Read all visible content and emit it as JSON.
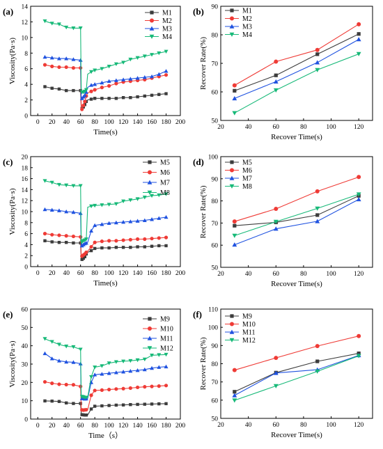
{
  "colors": {
    "black": "#3c3c3c",
    "red": "#ef3b36",
    "blue": "#1f52e0",
    "green": "#17b978"
  },
  "chart_data": [
    {
      "panel_label": "(a)",
      "type": "line",
      "xlabel": "Time(s)",
      "ylabel": "Viscosity(Pa·s)",
      "xlim": [
        -10,
        200
      ],
      "ylim": [
        0,
        14
      ],
      "xticks": [
        0,
        20,
        40,
        60,
        80,
        100,
        120,
        140,
        160,
        180,
        200
      ],
      "yticks": [
        0,
        2,
        4,
        6,
        8,
        10,
        12,
        14
      ],
      "legend_position": "top-right",
      "series": [
        {
          "name": "M1",
          "color": "#3c3c3c",
          "marker": "square",
          "x": [
            10,
            20,
            30,
            40,
            50,
            60,
            61,
            62,
            63,
            64,
            65,
            66,
            67,
            68,
            70,
            75,
            80,
            90,
            100,
            110,
            120,
            130,
            140,
            150,
            160,
            170,
            180
          ],
          "y": [
            3.7,
            3.5,
            3.4,
            3.2,
            3.2,
            3.2,
            0.8,
            0.9,
            1.0,
            1.1,
            1.2,
            1.4,
            1.6,
            1.8,
            2.0,
            2.1,
            2.2,
            2.2,
            2.2,
            2.2,
            2.3,
            2.3,
            2.4,
            2.5,
            2.6,
            2.7,
            2.8
          ]
        },
        {
          "name": "M2",
          "color": "#ef3b36",
          "marker": "circle",
          "x": [
            10,
            20,
            30,
            40,
            50,
            60,
            61,
            62,
            63,
            64,
            65,
            66,
            67,
            68,
            70,
            75,
            80,
            90,
            100,
            110,
            120,
            130,
            140,
            150,
            160,
            170,
            180
          ],
          "y": [
            6.5,
            6.3,
            6.2,
            6.2,
            6.1,
            6.1,
            0.7,
            0.8,
            1.0,
            1.3,
            1.5,
            1.8,
            2.1,
            2.5,
            2.9,
            3.1,
            3.3,
            3.6,
            3.8,
            4.1,
            4.3,
            4.4,
            4.5,
            4.6,
            4.8,
            5.0,
            5.2
          ]
        },
        {
          "name": "M3",
          "color": "#1f52e0",
          "marker": "triangle-up",
          "x": [
            10,
            20,
            30,
            40,
            50,
            60,
            61,
            62,
            63,
            64,
            65,
            66,
            67,
            68,
            70,
            75,
            80,
            90,
            100,
            110,
            120,
            130,
            140,
            150,
            160,
            170,
            180
          ],
          "y": [
            7.5,
            7.4,
            7.3,
            7.3,
            7.2,
            7.1,
            2.0,
            2.2,
            2.3,
            2.4,
            2.5,
            2.6,
            2.8,
            3.0,
            3.6,
            3.9,
            4.0,
            4.2,
            4.4,
            4.5,
            4.6,
            4.7,
            4.8,
            4.9,
            5.0,
            5.3,
            5.7
          ]
        },
        {
          "name": "M4",
          "color": "#17b978",
          "marker": "triangle-down",
          "x": [
            10,
            20,
            30,
            40,
            50,
            60,
            61,
            62,
            63,
            64,
            65,
            66,
            67,
            68,
            70,
            75,
            80,
            90,
            100,
            110,
            120,
            130,
            140,
            150,
            160,
            170,
            180
          ],
          "y": [
            12.1,
            11.8,
            11.7,
            11.3,
            11.2,
            11.2,
            3.1,
            3.0,
            3.0,
            3.0,
            3.0,
            3.1,
            3.2,
            3.3,
            5.3,
            5.6,
            5.8,
            6.0,
            6.3,
            6.6,
            6.8,
            7.2,
            7.4,
            7.6,
            7.8,
            8.0,
            8.2
          ]
        }
      ]
    },
    {
      "panel_label": "(b)",
      "type": "line",
      "xlabel": "Recover Time(s)",
      "ylabel": "Recover Rate(%)",
      "xlim": [
        20,
        130
      ],
      "ylim": [
        50,
        90
      ],
      "xticks": [
        20,
        40,
        60,
        80,
        100,
        120
      ],
      "yticks": [
        50,
        60,
        70,
        80,
        90
      ],
      "legend_position": "top-left",
      "series": [
        {
          "name": "M1",
          "color": "#3c3c3c",
          "marker": "square",
          "x": [
            30,
            60,
            90,
            120
          ],
          "y": [
            60.4,
            65.8,
            73.2,
            80.3
          ]
        },
        {
          "name": "M2",
          "color": "#ef3b36",
          "marker": "circle",
          "x": [
            30,
            60,
            90,
            120
          ],
          "y": [
            62.3,
            70.6,
            74.7,
            83.7
          ]
        },
        {
          "name": "M3",
          "color": "#1f52e0",
          "marker": "triangle-up",
          "x": [
            30,
            60,
            90,
            120
          ],
          "y": [
            57.7,
            63.6,
            70.3,
            78.4
          ]
        },
        {
          "name": "M4",
          "color": "#17b978",
          "marker": "triangle-down",
          "x": [
            30,
            60,
            90,
            120
          ],
          "y": [
            52.6,
            60.6,
            67.7,
            73.3
          ]
        }
      ]
    },
    {
      "panel_label": "(c)",
      "type": "line",
      "xlabel": "Time(s)",
      "ylabel": "Viscosity(Pa·s)",
      "xlim": [
        -10,
        200
      ],
      "ylim": [
        0,
        20
      ],
      "xticks": [
        0,
        20,
        40,
        60,
        80,
        100,
        120,
        140,
        160,
        180,
        200
      ],
      "yticks": [
        0,
        2,
        4,
        6,
        8,
        10,
        12,
        14,
        16,
        18,
        20
      ],
      "legend_position": "top-right",
      "series": [
        {
          "name": "M5",
          "color": "#3c3c3c",
          "marker": "square",
          "x": [
            10,
            20,
            30,
            40,
            50,
            60,
            61,
            62,
            63,
            64,
            65,
            66,
            67,
            68,
            70,
            75,
            80,
            90,
            100,
            110,
            120,
            130,
            140,
            150,
            160,
            170,
            180
          ],
          "y": [
            4.7,
            4.5,
            4.4,
            4.4,
            4.3,
            4.3,
            1.2,
            1.3,
            1.4,
            1.5,
            1.6,
            1.8,
            2.0,
            2.3,
            2.6,
            2.9,
            3.3,
            3.4,
            3.4,
            3.5,
            3.5,
            3.5,
            3.6,
            3.6,
            3.7,
            3.8,
            3.8
          ]
        },
        {
          "name": "M6",
          "color": "#ef3b36",
          "marker": "circle",
          "x": [
            10,
            20,
            30,
            40,
            50,
            60,
            61,
            62,
            63,
            64,
            65,
            66,
            67,
            68,
            70,
            75,
            80,
            90,
            100,
            110,
            120,
            130,
            140,
            150,
            160,
            170,
            180
          ],
          "y": [
            6.0,
            5.8,
            5.7,
            5.6,
            5.5,
            5.4,
            1.8,
            1.9,
            2.0,
            2.1,
            2.2,
            2.3,
            2.4,
            2.6,
            2.8,
            3.6,
            4.4,
            4.6,
            4.7,
            4.7,
            4.8,
            4.9,
            5.0,
            5.0,
            5.1,
            5.2,
            5.3
          ]
        },
        {
          "name": "M7",
          "color": "#1f52e0",
          "marker": "triangle-up",
          "x": [
            10,
            20,
            30,
            40,
            50,
            60,
            61,
            62,
            63,
            64,
            65,
            66,
            67,
            68,
            70,
            75,
            80,
            90,
            100,
            110,
            120,
            130,
            140,
            150,
            160,
            170,
            180
          ],
          "y": [
            10.4,
            10.3,
            10.2,
            10.0,
            9.9,
            9.7,
            3.7,
            3.8,
            3.9,
            4.0,
            4.1,
            4.2,
            4.2,
            4.3,
            4.4,
            6.5,
            7.5,
            7.7,
            7.9,
            8.0,
            8.1,
            8.2,
            8.3,
            8.4,
            8.6,
            8.8,
            9.0
          ]
        },
        {
          "name": "M8",
          "color": "#17b978",
          "marker": "triangle-down",
          "x": [
            10,
            20,
            30,
            40,
            50,
            60,
            61,
            62,
            63,
            64,
            65,
            66,
            67,
            68,
            70,
            75,
            80,
            90,
            100,
            110,
            120,
            130,
            140,
            150,
            160,
            170,
            180
          ],
          "y": [
            15.6,
            15.3,
            14.9,
            14.8,
            14.7,
            14.7,
            4.3,
            4.5,
            4.6,
            4.7,
            4.8,
            4.8,
            4.9,
            5.0,
            10.8,
            11.0,
            11.1,
            11.2,
            11.3,
            11.4,
            11.9,
            12.1,
            12.3,
            12.6,
            12.9,
            13.0,
            13.2
          ]
        }
      ]
    },
    {
      "panel_label": "(d)",
      "type": "line",
      "xlabel": "Recover Time(s)",
      "ylabel": "Recover Rate(%)",
      "xlim": [
        20,
        130
      ],
      "ylim": [
        50,
        100
      ],
      "xticks": [
        20,
        40,
        60,
        80,
        100,
        120
      ],
      "yticks": [
        50,
        60,
        70,
        80,
        90,
        100
      ],
      "legend_position": "top-left",
      "series": [
        {
          "name": "M5",
          "color": "#3c3c3c",
          "marker": "square",
          "x": [
            30,
            60,
            90,
            120
          ],
          "y": [
            68.8,
            70.3,
            73.6,
            82.3
          ]
        },
        {
          "name": "M6",
          "color": "#ef3b36",
          "marker": "circle",
          "x": [
            30,
            60,
            90,
            120
          ],
          "y": [
            70.7,
            76.4,
            84.3,
            90.8
          ]
        },
        {
          "name": "M7",
          "color": "#1f52e0",
          "marker": "triangle-up",
          "x": [
            30,
            60,
            90,
            120
          ],
          "y": [
            60.2,
            67.4,
            70.8,
            80.7
          ]
        },
        {
          "name": "M8",
          "color": "#17b978",
          "marker": "triangle-down",
          "x": [
            30,
            60,
            90,
            120
          ],
          "y": [
            64.3,
            70.6,
            76.6,
            83.0
          ]
        }
      ]
    },
    {
      "panel_label": "(e)",
      "type": "line",
      "xlabel": "Time（s）",
      "ylabel": "Viscosity(Pa·s)",
      "xlim": [
        -10,
        200
      ],
      "ylim": [
        0,
        60
      ],
      "xticks": [
        0,
        20,
        40,
        60,
        80,
        100,
        120,
        140,
        160,
        180,
        200
      ],
      "yticks": [
        0,
        10,
        20,
        30,
        40,
        50,
        60
      ],
      "legend_position": "top-right",
      "series": [
        {
          "name": "M9",
          "color": "#3c3c3c",
          "marker": "square",
          "x": [
            10,
            20,
            30,
            40,
            50,
            60,
            61,
            62,
            63,
            64,
            65,
            66,
            67,
            68,
            70,
            75,
            80,
            90,
            100,
            110,
            120,
            130,
            140,
            150,
            160,
            170,
            180
          ],
          "y": [
            9.9,
            9.8,
            9.6,
            8.8,
            8.5,
            8.5,
            2.6,
            2.4,
            2.3,
            2.3,
            2.2,
            2.2,
            2.2,
            2.2,
            2.2,
            5.5,
            7.0,
            7.2,
            7.4,
            7.6,
            7.7,
            7.9,
            8.0,
            8.1,
            8.2,
            8.3,
            8.4
          ]
        },
        {
          "name": "M10",
          "color": "#ef3b36",
          "marker": "circle",
          "x": [
            10,
            20,
            30,
            40,
            50,
            60,
            61,
            62,
            63,
            64,
            65,
            66,
            67,
            68,
            70,
            75,
            80,
            90,
            100,
            110,
            120,
            130,
            140,
            150,
            160,
            170,
            180
          ],
          "y": [
            20.3,
            19.5,
            19.0,
            18.8,
            18.7,
            17.8,
            5.2,
            5.0,
            5.0,
            4.9,
            4.9,
            5.0,
            5.0,
            5.1,
            5.1,
            13.0,
            15.6,
            15.8,
            16.1,
            16.4,
            16.6,
            16.9,
            17.3,
            17.6,
            17.8,
            18.0,
            18.3
          ]
        },
        {
          "name": "M11",
          "color": "#1f52e0",
          "marker": "triangle-up",
          "x": [
            10,
            20,
            30,
            40,
            50,
            60,
            61,
            62,
            63,
            64,
            65,
            66,
            67,
            68,
            70,
            75,
            80,
            90,
            100,
            110,
            120,
            130,
            140,
            150,
            160,
            170,
            180
          ],
          "y": [
            35.8,
            33.0,
            31.8,
            31.2,
            31.0,
            30.2,
            10.8,
            11.2,
            11.5,
            11.3,
            11.1,
            11.0,
            11.0,
            11.1,
            11.2,
            20.0,
            24.2,
            24.6,
            25.0,
            25.4,
            25.8,
            26.2,
            26.6,
            27.0,
            27.8,
            28.3,
            28.6
          ]
        },
        {
          "name": "M12",
          "color": "#17b978",
          "marker": "triangle-down",
          "x": [
            10,
            20,
            30,
            40,
            50,
            60,
            61,
            62,
            63,
            64,
            65,
            66,
            67,
            68,
            70,
            75,
            80,
            90,
            100,
            110,
            120,
            130,
            140,
            150,
            160,
            170,
            180
          ],
          "y": [
            43.8,
            42.2,
            40.7,
            39.7,
            39.4,
            38.0,
            12.0,
            12.3,
            12.2,
            12.1,
            11.9,
            11.8,
            11.7,
            11.8,
            11.8,
            23.0,
            28.3,
            29.0,
            30.5,
            31.2,
            31.5,
            31.8,
            32.2,
            32.6,
            34.8,
            35.0,
            35.2
          ]
        }
      ]
    },
    {
      "panel_label": "(f)",
      "type": "line",
      "xlabel": "Recover Time(s)",
      "ylabel": "Recover Rate(%)",
      "xlim": [
        20,
        130
      ],
      "ylim": [
        50,
        110
      ],
      "xticks": [
        20,
        40,
        60,
        80,
        100,
        120
      ],
      "yticks": [
        50,
        60,
        70,
        80,
        90,
        100,
        110
      ],
      "legend_position": "top-left",
      "series": [
        {
          "name": "M9",
          "color": "#3c3c3c",
          "marker": "square",
          "x": [
            30,
            60,
            90,
            120
          ],
          "y": [
            64.6,
            75.1,
            81.3,
            85.7
          ]
        },
        {
          "name": "M10",
          "color": "#ef3b36",
          "marker": "circle",
          "x": [
            30,
            60,
            90,
            120
          ],
          "y": [
            76.5,
            83.2,
            89.7,
            95.2
          ]
        },
        {
          "name": "M11",
          "color": "#1f52e0",
          "marker": "triangle-up",
          "x": [
            30,
            60,
            90,
            120
          ],
          "y": [
            62.6,
            74.9,
            76.7,
            84.6
          ]
        },
        {
          "name": "M12",
          "color": "#17b978",
          "marker": "triangle-down",
          "x": [
            30,
            60,
            90,
            120
          ],
          "y": [
            59.9,
            67.8,
            75.8,
            84.3
          ]
        }
      ]
    }
  ]
}
